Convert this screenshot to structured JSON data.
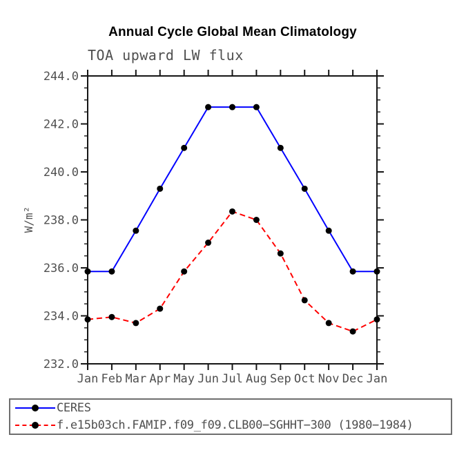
{
  "title": "Annual Cycle Global Mean Climatology",
  "subtitle": "TOA upward LW flux",
  "colors": {
    "background": "#ffffff",
    "axis": "#141414",
    "tick_label": "#4f4f4f",
    "title": "#000000",
    "ceres_line": "#0000ff",
    "model_line": "#ff0000",
    "marker": "#000000",
    "legend_border": "#6e6e6e",
    "legend_text": "#4f4f4f"
  },
  "chart_data": {
    "type": "line",
    "title": "Annual Cycle Global Mean Climatology",
    "subtitle": "TOA upward LW flux",
    "xlabel": "",
    "ylabel": "W/m²",
    "categories": [
      "Jan",
      "Feb",
      "Mar",
      "Apr",
      "May",
      "Jun",
      "Jul",
      "Aug",
      "Sep",
      "Oct",
      "Nov",
      "Dec",
      "Jan"
    ],
    "ylim": [
      232.0,
      244.0
    ],
    "ytick_major": 2.0,
    "ytick_minor": 0.5,
    "y_tick_labels": [
      "232.0",
      "234.0",
      "236.0",
      "238.0",
      "240.0",
      "242.0",
      "244.0"
    ],
    "grid": false,
    "legend_position": "bottom-left-box",
    "series": [
      {
        "name": "CERES",
        "slug": "ceres",
        "color": "#0000ff",
        "style": "solid",
        "marker": "circle",
        "marker_color": "#000000",
        "values": [
          235.85,
          235.85,
          237.55,
          239.3,
          241.0,
          242.7,
          242.7,
          242.7,
          241.0,
          239.3,
          237.55,
          235.85,
          235.85
        ]
      },
      {
        "name": "f.e15b03ch.FAMIP.f09_f09.CLB00−SGHHT−300 (1980−1984)",
        "slug": "model",
        "color": "#ff0000",
        "style": "dashed",
        "marker": "circle",
        "marker_color": "#000000",
        "values": [
          233.85,
          233.95,
          233.7,
          234.3,
          235.85,
          237.05,
          238.35,
          238.0,
          236.6,
          234.65,
          233.7,
          233.35,
          233.85
        ]
      }
    ]
  },
  "legend": {
    "entries": [
      {
        "label": "CERES"
      },
      {
        "label": "f.e15b03ch.FAMIP.f09_f09.CLB00−SGHHT−300 (1980−1984)"
      }
    ]
  }
}
